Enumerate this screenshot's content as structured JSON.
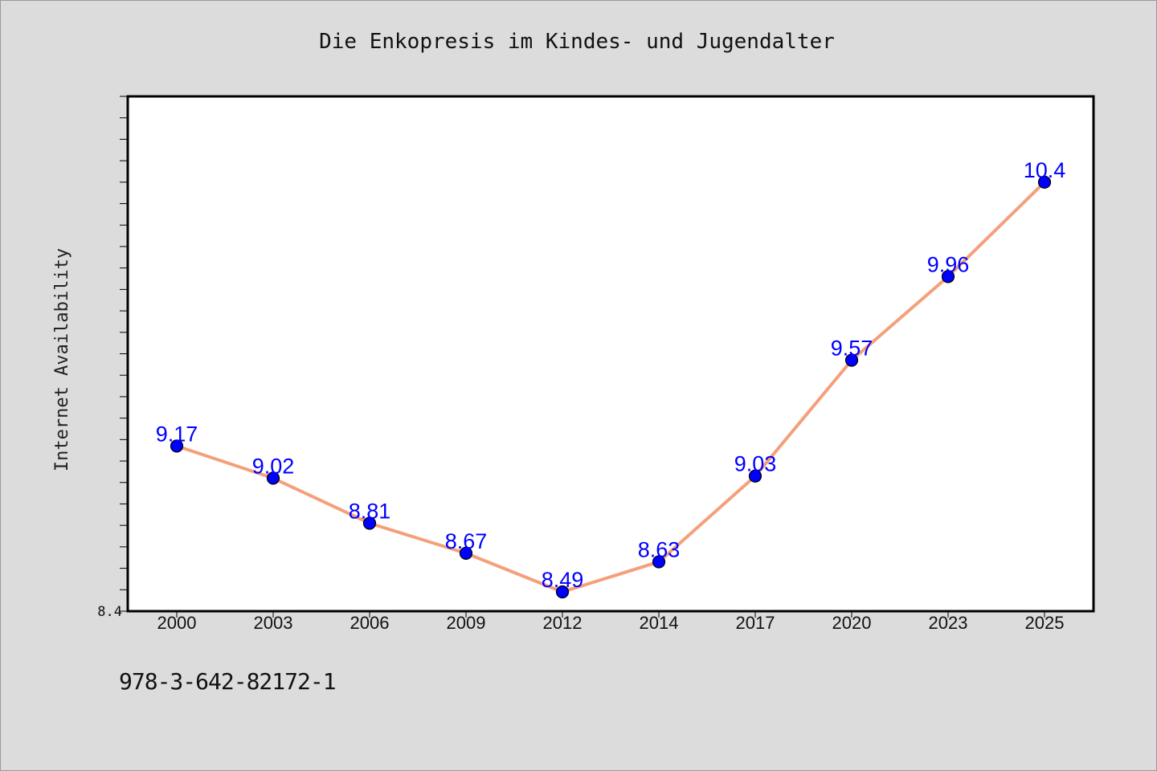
{
  "chart_data": {
    "type": "line",
    "title": "Die Enkopresis im Kindes- und Jugendalter",
    "xlabel": "",
    "ylabel": "Internet Availability",
    "categories": [
      "2000",
      "2003",
      "2006",
      "2009",
      "2012",
      "2014",
      "2017",
      "2020",
      "2023",
      "2025"
    ],
    "series": [
      {
        "values": [
          9.17,
          9.02,
          8.81,
          8.67,
          8.49,
          8.63,
          9.03,
          9.57,
          9.96,
          10.4
        ]
      }
    ],
    "data_labels": [
      "9.17",
      "9.02",
      "8.81",
      "8.67",
      "8.49",
      "8.63",
      "9.03",
      "9.57",
      "9.96",
      "10.4"
    ],
    "y_tick_labels": [
      "8.4"
    ],
    "ylim": [
      8.4,
      10.8
    ],
    "grid": false,
    "line_color": "#f4a07a",
    "marker_color": "#0000ff",
    "label_color": "#0000ff"
  },
  "footnote": "978-3-642-82172-1"
}
